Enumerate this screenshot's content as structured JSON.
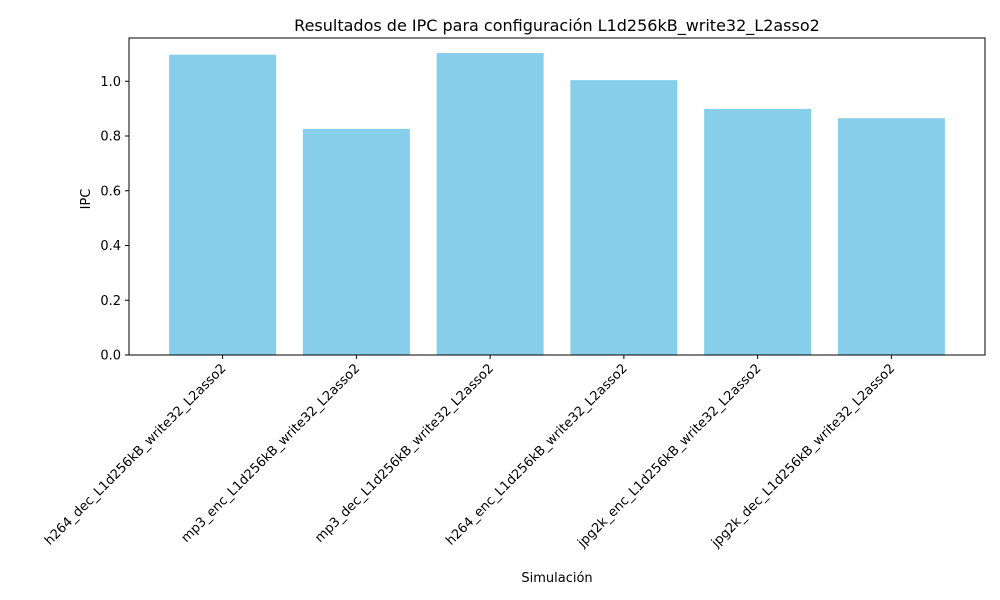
{
  "chart_data": {
    "type": "bar",
    "title": "Resultados de IPC para configuración L1d256kB_write32_L2asso2",
    "xlabel": "Simulación",
    "ylabel": "IPC",
    "categories": [
      "h264_dec_L1d256kB_write32_L2asso2",
      "mp3_enc_L1d256kB_write32_L2asso2",
      "mp3_dec_L1d256kB_write32_L2asso2",
      "h264_enc_L1d256kB_write32_L2asso2",
      "jpg2k_enc_L1d256kB_write32_L2asso2",
      "jpg2k_dec_L1d256kB_write32_L2asso2"
    ],
    "values": [
      1.097,
      0.826,
      1.103,
      1.004,
      0.899,
      0.865
    ],
    "ylim": [
      0,
      1.158
    ],
    "yticks": [
      0.0,
      0.2,
      0.4,
      0.6,
      0.8,
      1.0
    ],
    "ytick_labels": [
      "0.0",
      "0.2",
      "0.4",
      "0.6",
      "0.8",
      "1.0"
    ],
    "grid": false,
    "bar_color": "#87ceeb"
  }
}
